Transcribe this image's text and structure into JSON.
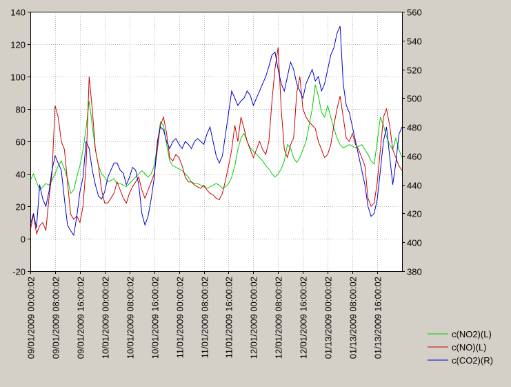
{
  "chart_data": {
    "type": "line",
    "title": "",
    "xlabel": "",
    "ylabel": "",
    "ylim_left": [
      -20,
      140
    ],
    "ylim_right": [
      380,
      560
    ],
    "yticks_left": [
      -20,
      0,
      20,
      40,
      60,
      80,
      100,
      120,
      140
    ],
    "yticks_right": [
      380,
      400,
      420,
      440,
      460,
      480,
      500,
      520,
      540,
      560
    ],
    "x_tick_labels": [
      "09/01/2009 00:00:02",
      "09/01/2009 08:00:02",
      "09/01/2009 16:00:02",
      "10/01/2009 00:00:02",
      "10/01/2009 08:00:02",
      "10/01/2009 16:00:02",
      "11/01/2009 00:00:02",
      "11/01/2009 08:00:02",
      "11/01/2009 16:00:02",
      "12/01/2009 00:00:02",
      "12/01/2009 08:00:02",
      "12/01/2009 16:00:02",
      "01/13/2009 00:00:02",
      "01/13/2009 08:00:02",
      "01/13/2009 16:00:02"
    ],
    "x_hours": [
      0,
      1,
      2,
      3,
      4,
      5,
      6,
      7,
      8,
      9,
      10,
      11,
      12,
      13,
      14,
      15,
      16,
      17,
      18,
      19,
      20,
      21,
      22,
      23,
      24,
      25,
      26,
      27,
      28,
      29,
      30,
      31,
      32,
      33,
      34,
      35,
      36,
      37,
      38,
      39,
      40,
      41,
      42,
      43,
      44,
      45,
      46,
      47,
      48,
      49,
      50,
      51,
      52,
      53,
      54,
      55,
      56,
      57,
      58,
      59,
      60,
      61,
      62,
      63,
      64,
      65,
      66,
      67,
      68,
      69,
      70,
      71,
      72,
      73,
      74,
      75,
      76,
      77,
      78,
      79,
      80,
      81,
      82,
      83,
      84,
      85,
      86,
      87,
      88,
      89,
      90,
      91,
      92,
      93,
      94,
      95,
      96,
      97,
      98,
      99,
      100,
      101,
      102,
      103,
      104,
      105,
      106,
      107,
      108,
      109,
      110,
      111,
      112,
      113,
      114,
      115,
      116,
      117,
      118,
      119,
      120
    ],
    "grid": true,
    "legend_placement": "bottom-right",
    "series": [
      {
        "name": "c(NO2)(L)",
        "axis": "left",
        "color": "#00cc00",
        "values": [
          36,
          40,
          35,
          30,
          32,
          34,
          33,
          36,
          40,
          45,
          48,
          43,
          37,
          28,
          30,
          38,
          45,
          55,
          68,
          85,
          70,
          55,
          45,
          40,
          38,
          35,
          36,
          37,
          34,
          34,
          33,
          32,
          34,
          36,
          38,
          40,
          42,
          40,
          38,
          40,
          45,
          58,
          72,
          70,
          58,
          48,
          45,
          44,
          43,
          42,
          40,
          38,
          35,
          34,
          34,
          33,
          32,
          31,
          32,
          33,
          34,
          33,
          31,
          32,
          34,
          38,
          45,
          55,
          62,
          65,
          60,
          56,
          54,
          52,
          50,
          48,
          45,
          43,
          40,
          38,
          40,
          43,
          48,
          58,
          56,
          50,
          47,
          50,
          55,
          60,
          70,
          80,
          95,
          88,
          78,
          75,
          82,
          75,
          68,
          62,
          58,
          56,
          57,
          58,
          57,
          56,
          57,
          58,
          55,
          52,
          48,
          46,
          60,
          75,
          70,
          63,
          58,
          55,
          62,
          55,
          50
        ]
      },
      {
        "name": "c(NO)(L)",
        "axis": "left",
        "color": "#cc0000",
        "values": [
          5,
          15,
          3,
          8,
          10,
          5,
          25,
          40,
          82,
          75,
          60,
          55,
          35,
          15,
          12,
          14,
          10,
          20,
          45,
          100,
          80,
          55,
          45,
          30,
          22,
          22,
          25,
          28,
          35,
          30,
          25,
          22,
          28,
          32,
          35,
          38,
          30,
          25,
          30,
          35,
          40,
          55,
          70,
          75,
          65,
          50,
          48,
          52,
          50,
          45,
          38,
          35,
          35,
          33,
          32,
          31,
          33,
          30,
          28,
          27,
          25,
          24,
          28,
          36,
          45,
          55,
          70,
          60,
          75,
          68,
          60,
          55,
          50,
          55,
          60,
          55,
          52,
          60,
          85,
          105,
          118,
          80,
          55,
          50,
          58,
          62,
          90,
          100,
          80,
          75,
          72,
          70,
          68,
          60,
          55,
          50,
          52,
          58,
          70,
          80,
          88,
          75,
          62,
          60,
          65,
          58,
          55,
          50,
          45,
          25,
          20,
          22,
          35,
          55,
          75,
          80,
          70,
          55,
          50,
          45,
          42
        ]
      },
      {
        "name": "c(CO2)(R)",
        "axis": "right",
        "color": "#0000cc",
        "values": [
          412,
          420,
          410,
          440,
          430,
          425,
          435,
          450,
          460,
          455,
          450,
          430,
          412,
          408,
          405,
          418,
          435,
          445,
          470,
          465,
          450,
          440,
          432,
          430,
          435,
          445,
          450,
          455,
          455,
          450,
          448,
          440,
          445,
          452,
          450,
          440,
          420,
          412,
          418,
          430,
          445,
          470,
          480,
          478,
          470,
          465,
          470,
          472,
          468,
          465,
          470,
          468,
          465,
          470,
          472,
          470,
          468,
          475,
          480,
          470,
          460,
          455,
          460,
          475,
          490,
          505,
          500,
          495,
          498,
          500,
          505,
          502,
          495,
          500,
          505,
          510,
          515,
          522,
          530,
          532,
          520,
          510,
          505,
          515,
          525,
          520,
          510,
          505,
          500,
          510,
          515,
          520,
          512,
          515,
          505,
          510,
          520,
          530,
          535,
          545,
          550,
          510,
          495,
          490,
          480,
          470,
          460,
          450,
          440,
          425,
          418,
          420,
          430,
          450,
          470,
          480,
          460,
          440,
          455,
          475,
          480
        ]
      }
    ]
  },
  "legend": {
    "items": [
      {
        "label": "c(NO2)(L)",
        "color": "#00cc00"
      },
      {
        "label": "c(NO)(L)",
        "color": "#cc0000"
      },
      {
        "label": "c(CO2)(R)",
        "color": "#0000cc"
      }
    ]
  }
}
